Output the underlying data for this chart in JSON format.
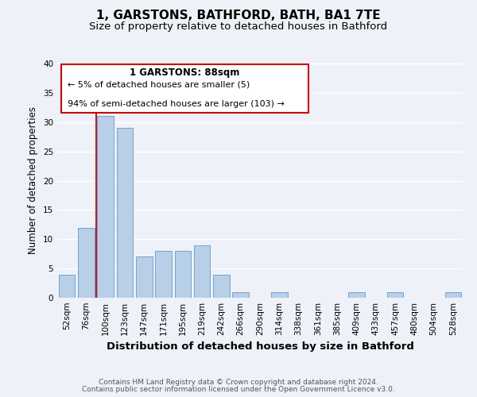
{
  "title": "1, GARSTONS, BATHFORD, BATH, BA1 7TE",
  "subtitle": "Size of property relative to detached houses in Bathford",
  "xlabel": "Distribution of detached houses by size in Bathford",
  "ylabel": "Number of detached properties",
  "categories": [
    "52sqm",
    "76sqm",
    "100sqm",
    "123sqm",
    "147sqm",
    "171sqm",
    "195sqm",
    "219sqm",
    "242sqm",
    "266sqm",
    "290sqm",
    "314sqm",
    "338sqm",
    "361sqm",
    "385sqm",
    "409sqm",
    "433sqm",
    "457sqm",
    "480sqm",
    "504sqm",
    "528sqm"
  ],
  "values": [
    4,
    12,
    31,
    29,
    7,
    8,
    8,
    9,
    4,
    1,
    0,
    1,
    0,
    0,
    0,
    1,
    0,
    1,
    0,
    0,
    1
  ],
  "bar_color": "#b8cfe8",
  "bar_edge_color": "#6699cc",
  "property_line_color": "#cc0000",
  "ylim": [
    0,
    40
  ],
  "yticks": [
    0,
    5,
    10,
    15,
    20,
    25,
    30,
    35,
    40
  ],
  "annotation_title": "1 GARSTONS: 88sqm",
  "annotation_line1": "← 5% of detached houses are smaller (5)",
  "annotation_line2": "94% of semi-detached houses are larger (103) →",
  "annotation_box_color": "#ffffff",
  "annotation_box_edge": "#cc0000",
  "footer_line1": "Contains HM Land Registry data © Crown copyright and database right 2024.",
  "footer_line2": "Contains public sector information licensed under the Open Government Licence v3.0.",
  "background_color": "#eef2f8",
  "grid_color": "#ffffff",
  "title_fontsize": 11,
  "subtitle_fontsize": 9.5,
  "xlabel_fontsize": 9.5,
  "ylabel_fontsize": 8.5,
  "tick_fontsize": 7.5,
  "footer_fontsize": 6.5,
  "annotation_fontsize": 8.5
}
